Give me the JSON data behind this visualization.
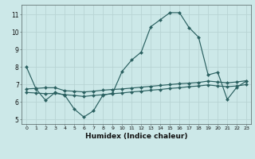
{
  "xlabel": "Humidex (Indice chaleur)",
  "background_color": "#cce8e8",
  "grid_color_major": "#b8d4d4",
  "line_color": "#2a6060",
  "x_hours": [
    0,
    1,
    2,
    3,
    4,
    5,
    6,
    7,
    8,
    9,
    10,
    11,
    12,
    13,
    14,
    15,
    16,
    17,
    18,
    19,
    20,
    21,
    22,
    23
  ],
  "line1": [
    8.0,
    6.75,
    6.1,
    6.55,
    6.4,
    5.6,
    5.15,
    5.5,
    6.4,
    6.5,
    7.75,
    8.4,
    8.85,
    10.3,
    10.7,
    11.1,
    11.1,
    10.25,
    9.7,
    7.55,
    7.7,
    6.15,
    6.85,
    7.2
  ],
  "line2": [
    6.75,
    6.78,
    6.82,
    6.82,
    6.65,
    6.62,
    6.58,
    6.62,
    6.68,
    6.72,
    6.75,
    6.8,
    6.85,
    6.9,
    6.95,
    7.0,
    7.05,
    7.08,
    7.12,
    7.2,
    7.15,
    7.1,
    7.15,
    7.22
  ],
  "line3": [
    6.55,
    6.52,
    6.48,
    6.5,
    6.42,
    6.38,
    6.32,
    6.38,
    6.42,
    6.48,
    6.52,
    6.58,
    6.62,
    6.68,
    6.72,
    6.78,
    6.82,
    6.88,
    6.92,
    6.98,
    6.92,
    6.88,
    6.92,
    7.0
  ],
  "ylim": [
    4.75,
    11.55
  ],
  "yticks": [
    5,
    6,
    7,
    8,
    9,
    10,
    11
  ],
  "xticks": [
    0,
    1,
    2,
    3,
    4,
    5,
    6,
    7,
    8,
    9,
    10,
    11,
    12,
    13,
    14,
    15,
    16,
    17,
    18,
    19,
    20,
    21,
    22,
    23
  ]
}
